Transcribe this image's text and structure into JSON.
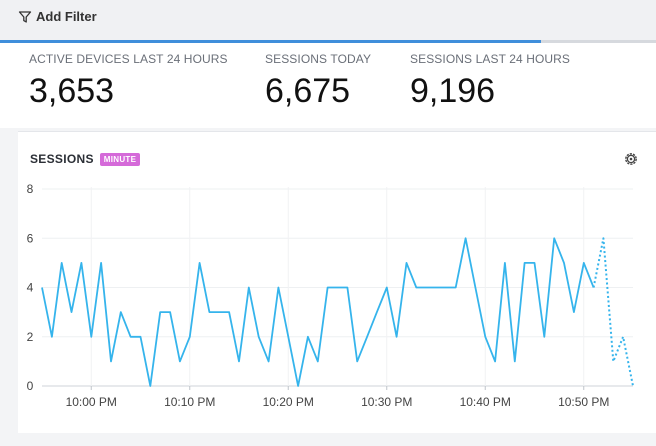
{
  "toolbar": {
    "filter_label": "Add Filter",
    "filter_icon": "filter-funnel-icon"
  },
  "progress": {
    "fraction": 0.825,
    "color": "#3f8edb"
  },
  "stats": [
    {
      "label": "ACTIVE DEVICES LAST 24 HOURS",
      "value": "3,653"
    },
    {
      "label": "SESSIONS TODAY",
      "value": "6,675"
    },
    {
      "label": "SESSIONS LAST 24 HOURS",
      "value": "9,196"
    }
  ],
  "panel": {
    "title": "SESSIONS",
    "badge": "MINUTE",
    "badge_color": "#d56ad9",
    "settings_icon": "gear-icon"
  },
  "chart_data": {
    "type": "line",
    "ylim": [
      0,
      8
    ],
    "yticks": [
      0,
      2,
      4,
      6,
      8
    ],
    "xlim": [
      "9:55 PM",
      "10:55 PM"
    ],
    "xticks": [
      "10:00 PM",
      "10:10 PM",
      "10:20 PM",
      "10:30 PM",
      "10:40 PM",
      "10:50 PM"
    ],
    "grid": true,
    "color": "#35b4ec",
    "series": [
      {
        "style": "solid",
        "x": [
          "9:55 PM",
          "9:56 PM",
          "9:57 PM",
          "9:58 PM",
          "9:59 PM",
          "10:00 PM",
          "10:01 PM",
          "10:02 PM",
          "10:03 PM",
          "10:04 PM",
          "10:05 PM",
          "10:06 PM",
          "10:07 PM",
          "10:08 PM",
          "10:09 PM",
          "10:10 PM",
          "10:11 PM",
          "10:12 PM",
          "10:13 PM",
          "10:14 PM",
          "10:15 PM",
          "10:16 PM",
          "10:17 PM",
          "10:18 PM",
          "10:19 PM",
          "10:20 PM",
          "10:21 PM",
          "10:22 PM",
          "10:23 PM",
          "10:24 PM",
          "10:25 PM",
          "10:26 PM",
          "10:27 PM",
          "10:28 PM",
          "10:29 PM",
          "10:30 PM",
          "10:31 PM",
          "10:32 PM",
          "10:33 PM",
          "10:34 PM",
          "10:35 PM",
          "10:36 PM",
          "10:37 PM",
          "10:38 PM",
          "10:39 PM",
          "10:40 PM",
          "10:41 PM",
          "10:42 PM",
          "10:43 PM",
          "10:44 PM",
          "10:45 PM",
          "10:46 PM",
          "10:47 PM",
          "10:48 PM",
          "10:49 PM",
          "10:50 PM",
          "10:51 PM"
        ],
        "y": [
          4,
          2,
          5,
          3,
          5,
          2,
          5,
          1,
          3,
          2,
          2,
          0,
          3,
          3,
          1,
          2,
          5,
          3,
          3,
          3,
          1,
          4,
          2,
          1,
          4,
          2,
          0,
          2,
          1,
          4,
          4,
          4,
          1,
          2,
          3,
          4,
          2,
          5,
          4,
          4,
          4,
          4,
          4,
          6,
          4,
          2,
          1,
          5,
          1,
          5,
          5,
          2,
          6,
          5,
          3,
          5,
          4
        ]
      },
      {
        "style": "dotted",
        "x": [
          "10:51 PM",
          "10:52 PM",
          "10:53 PM",
          "10:54 PM",
          "10:55 PM"
        ],
        "y": [
          4,
          6,
          1,
          2,
          0
        ]
      }
    ]
  }
}
